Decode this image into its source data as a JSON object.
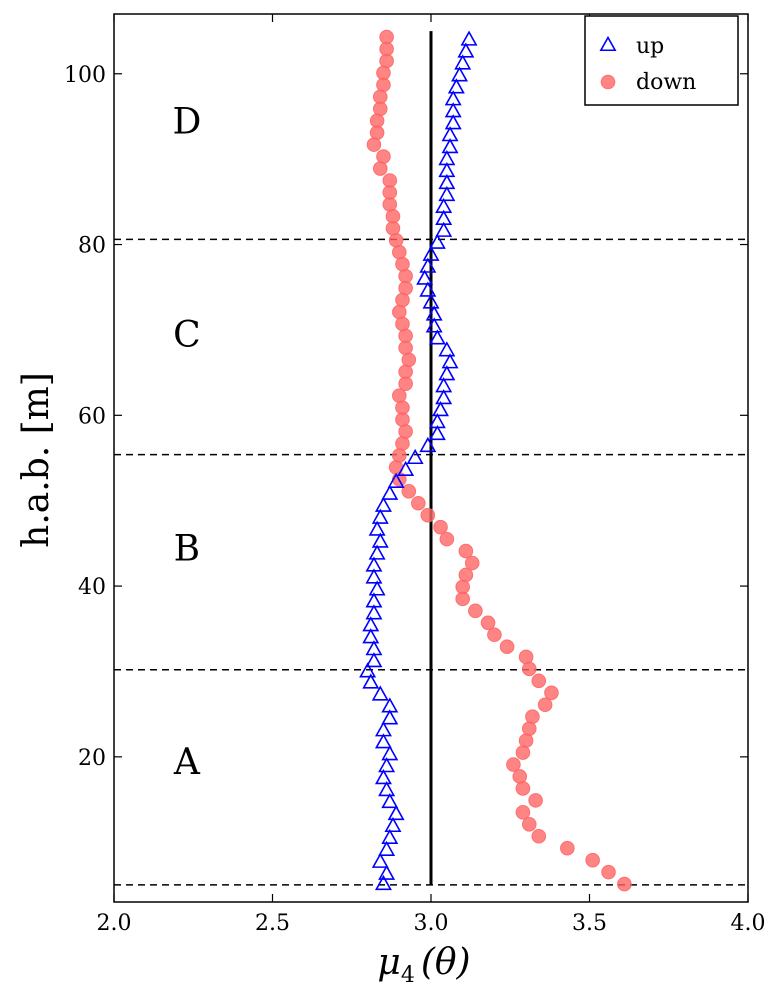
{
  "chart_data": {
    "type": "scatter",
    "title": "",
    "xlabel": "μ4 (θ)",
    "xlabel_main": "μ",
    "xlabel_sub": "4",
    "xlabel_arg": "(θ)",
    "ylabel": "h.a.b. [m]",
    "xlim": [
      2.0,
      4.0
    ],
    "ylim": [
      3,
      107
    ],
    "xticks": [
      2.0,
      2.5,
      3.0,
      3.5,
      4.0
    ],
    "xtick_labels": [
      "2.0",
      "2.5",
      "3.0",
      "3.5",
      "4.0"
    ],
    "yticks": [
      20,
      40,
      60,
      80,
      100
    ],
    "ytick_labels": [
      "20",
      "40",
      "60",
      "80",
      "100"
    ],
    "grid": false,
    "legend_position": "top-right",
    "reference_line": {
      "x": 3.0,
      "y_range": [
        5,
        105
      ],
      "color": "#000000"
    },
    "region_boundaries": [
      5,
      30.2,
      55.4,
      80.6
    ],
    "region_labels": [
      {
        "text": "A",
        "x": 2.23,
        "y": 18
      },
      {
        "text": "B",
        "x": 2.23,
        "y": 43
      },
      {
        "text": "C",
        "x": 2.23,
        "y": 68
      },
      {
        "text": "D",
        "x": 2.23,
        "y": 93
      }
    ],
    "series": [
      {
        "name": "up",
        "marker": "triangle",
        "color": "#0000ff",
        "points": [
          [
            2.85,
            5.1
          ],
          [
            2.86,
            6.3
          ],
          [
            2.84,
            7.7
          ],
          [
            2.86,
            9.1
          ],
          [
            2.87,
            10.5
          ],
          [
            2.88,
            11.9
          ],
          [
            2.89,
            13.3
          ],
          [
            2.87,
            14.7
          ],
          [
            2.86,
            16.1
          ],
          [
            2.85,
            17.5
          ],
          [
            2.86,
            18.9
          ],
          [
            2.87,
            20.3
          ],
          [
            2.85,
            21.7
          ],
          [
            2.85,
            23.1
          ],
          [
            2.87,
            24.5
          ],
          [
            2.87,
            25.9
          ],
          [
            2.84,
            27.3
          ],
          [
            2.81,
            28.7
          ],
          [
            2.8,
            30.0
          ],
          [
            2.82,
            31.2
          ],
          [
            2.82,
            32.6
          ],
          [
            2.81,
            34.0
          ],
          [
            2.81,
            35.4
          ],
          [
            2.82,
            36.8
          ],
          [
            2.82,
            38.2
          ],
          [
            2.83,
            39.6
          ],
          [
            2.82,
            41.0
          ],
          [
            2.82,
            42.4
          ],
          [
            2.83,
            43.8
          ],
          [
            2.84,
            45.2
          ],
          [
            2.83,
            46.6
          ],
          [
            2.84,
            48.0
          ],
          [
            2.85,
            49.4
          ],
          [
            2.87,
            50.8
          ],
          [
            2.89,
            52.2
          ],
          [
            2.92,
            53.6
          ],
          [
            2.95,
            55.0
          ],
          [
            2.99,
            56.4
          ],
          [
            3.02,
            57.8
          ],
          [
            3.02,
            59.2
          ],
          [
            3.03,
            60.6
          ],
          [
            3.04,
            62.0
          ],
          [
            3.04,
            63.4
          ],
          [
            3.05,
            64.8
          ],
          [
            3.06,
            66.2
          ],
          [
            3.05,
            67.6
          ],
          [
            3.02,
            69.0
          ],
          [
            3.01,
            70.4
          ],
          [
            3.01,
            71.8
          ],
          [
            3.0,
            73.2
          ],
          [
            2.99,
            74.6
          ],
          [
            2.98,
            76.0
          ],
          [
            2.99,
            77.4
          ],
          [
            3.0,
            78.8
          ],
          [
            3.02,
            80.2
          ],
          [
            3.04,
            81.6
          ],
          [
            3.04,
            83.0
          ],
          [
            3.04,
            84.4
          ],
          [
            3.05,
            85.8
          ],
          [
            3.05,
            87.2
          ],
          [
            3.05,
            88.6
          ],
          [
            3.05,
            90.0
          ],
          [
            3.06,
            91.4
          ],
          [
            3.06,
            92.8
          ],
          [
            3.07,
            94.2
          ],
          [
            3.07,
            95.6
          ],
          [
            3.07,
            97.0
          ],
          [
            3.08,
            98.4
          ],
          [
            3.09,
            99.8
          ],
          [
            3.1,
            101.2
          ],
          [
            3.11,
            102.6
          ],
          [
            3.12,
            104.0
          ]
        ]
      },
      {
        "name": "down",
        "marker": "circle",
        "color": "#ff6666",
        "points": [
          [
            3.61,
            5.1
          ],
          [
            3.56,
            6.5
          ],
          [
            3.51,
            7.9
          ],
          [
            3.43,
            9.3
          ],
          [
            3.34,
            10.7
          ],
          [
            3.31,
            12.1
          ],
          [
            3.29,
            13.5
          ],
          [
            3.33,
            14.9
          ],
          [
            3.29,
            16.3
          ],
          [
            3.28,
            17.7
          ],
          [
            3.26,
            19.1
          ],
          [
            3.29,
            20.5
          ],
          [
            3.3,
            21.9
          ],
          [
            3.31,
            23.3
          ],
          [
            3.32,
            24.7
          ],
          [
            3.36,
            26.1
          ],
          [
            3.38,
            27.5
          ],
          [
            3.34,
            28.9
          ],
          [
            3.31,
            30.3
          ],
          [
            3.3,
            31.7
          ],
          [
            3.24,
            32.9
          ],
          [
            3.2,
            34.3
          ],
          [
            3.18,
            35.7
          ],
          [
            3.14,
            37.1
          ],
          [
            3.1,
            38.5
          ],
          [
            3.1,
            39.9
          ],
          [
            3.11,
            41.3
          ],
          [
            3.13,
            42.7
          ],
          [
            3.11,
            44.1
          ],
          [
            3.05,
            45.5
          ],
          [
            3.03,
            46.9
          ],
          [
            2.99,
            48.3
          ],
          [
            2.96,
            49.7
          ],
          [
            2.93,
            51.1
          ],
          [
            2.9,
            52.5
          ],
          [
            2.89,
            53.9
          ],
          [
            2.9,
            55.3
          ],
          [
            2.91,
            56.7
          ],
          [
            2.92,
            58.1
          ],
          [
            2.91,
            59.5
          ],
          [
            2.91,
            60.9
          ],
          [
            2.9,
            62.3
          ],
          [
            2.92,
            63.7
          ],
          [
            2.92,
            65.1
          ],
          [
            2.93,
            66.5
          ],
          [
            2.92,
            67.9
          ],
          [
            2.92,
            69.3
          ],
          [
            2.91,
            70.7
          ],
          [
            2.9,
            72.1
          ],
          [
            2.91,
            73.5
          ],
          [
            2.92,
            74.9
          ],
          [
            2.92,
            76.3
          ],
          [
            2.91,
            77.7
          ],
          [
            2.9,
            79.1
          ],
          [
            2.89,
            80.5
          ],
          [
            2.88,
            81.9
          ],
          [
            2.88,
            83.3
          ],
          [
            2.87,
            84.7
          ],
          [
            2.87,
            86.1
          ],
          [
            2.87,
            87.5
          ],
          [
            2.84,
            88.9
          ],
          [
            2.85,
            90.3
          ],
          [
            2.82,
            91.7
          ],
          [
            2.83,
            93.1
          ],
          [
            2.83,
            94.5
          ],
          [
            2.84,
            95.9
          ],
          [
            2.84,
            97.3
          ],
          [
            2.85,
            98.7
          ],
          [
            2.85,
            100.1
          ],
          [
            2.86,
            101.5
          ],
          [
            2.86,
            102.9
          ],
          [
            2.86,
            104.3
          ]
        ]
      }
    ]
  }
}
